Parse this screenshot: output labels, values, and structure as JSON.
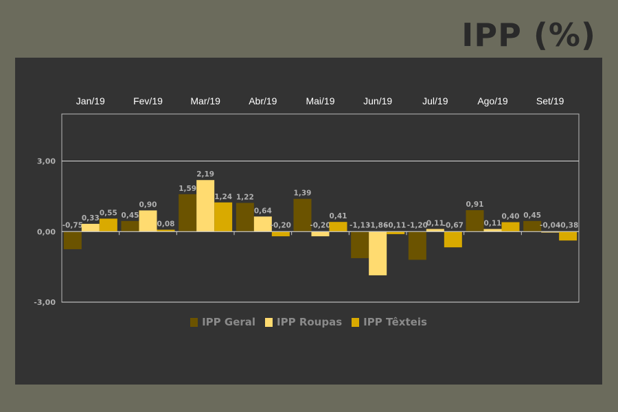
{
  "page_title": "IPP (%)",
  "colors": {
    "page_bg": "#6b6b5c",
    "panel_bg": "#333333",
    "title": "#2a2a2a",
    "axis_text": "#b0b0b0",
    "value_text": "#b0b0b0",
    "gridline": "#dddddd"
  },
  "chart_data": {
    "type": "bar",
    "categories": [
      "Jan/19",
      "Fev/19",
      "Mar/19",
      "Abr/19",
      "Mai/19",
      "Jun/19",
      "Jul/19",
      "Ago/19",
      "Set/19"
    ],
    "series": [
      {
        "name": "IPP Geral",
        "color": "#6b5300",
        "values": [
          -0.75,
          0.45,
          1.59,
          1.22,
          1.39,
          -1.13,
          -1.2,
          0.91,
          0.45
        ]
      },
      {
        "name": "IPP Roupas",
        "color": "#ffdb70",
        "values": [
          0.33,
          0.9,
          2.19,
          0.64,
          -0.2,
          -1.86,
          0.11,
          0.11,
          -0.04
        ]
      },
      {
        "name": "IPP Têxteis",
        "color": "#d9aa00",
        "values": [
          0.55,
          0.08,
          1.24,
          -0.2,
          0.41,
          -0.11,
          -0.67,
          0.4,
          -0.38
        ]
      }
    ],
    "value_labels": [
      [
        "-0,75",
        "0,45",
        "1,59",
        "1,22",
        "1,39",
        "-1,13",
        "-1,20",
        "0,91",
        "0,45"
      ],
      [
        "0,33",
        "0,90",
        "2,19",
        "0,64",
        "-0,20",
        "-1,86",
        "0,11",
        "0,11",
        "-0,04"
      ],
      [
        "0,55",
        "0,08",
        "1,24",
        "-0,20",
        "0,41",
        "-0,11",
        "-0,67",
        "0,40",
        "-0,38"
      ]
    ],
    "y_ticks": [
      3,
      0,
      -3
    ],
    "y_tick_labels": [
      "3,00",
      "0,00",
      "-3,00"
    ],
    "ylim": [
      -3,
      5
    ],
    "grid": true,
    "legend_position": "bottom"
  }
}
